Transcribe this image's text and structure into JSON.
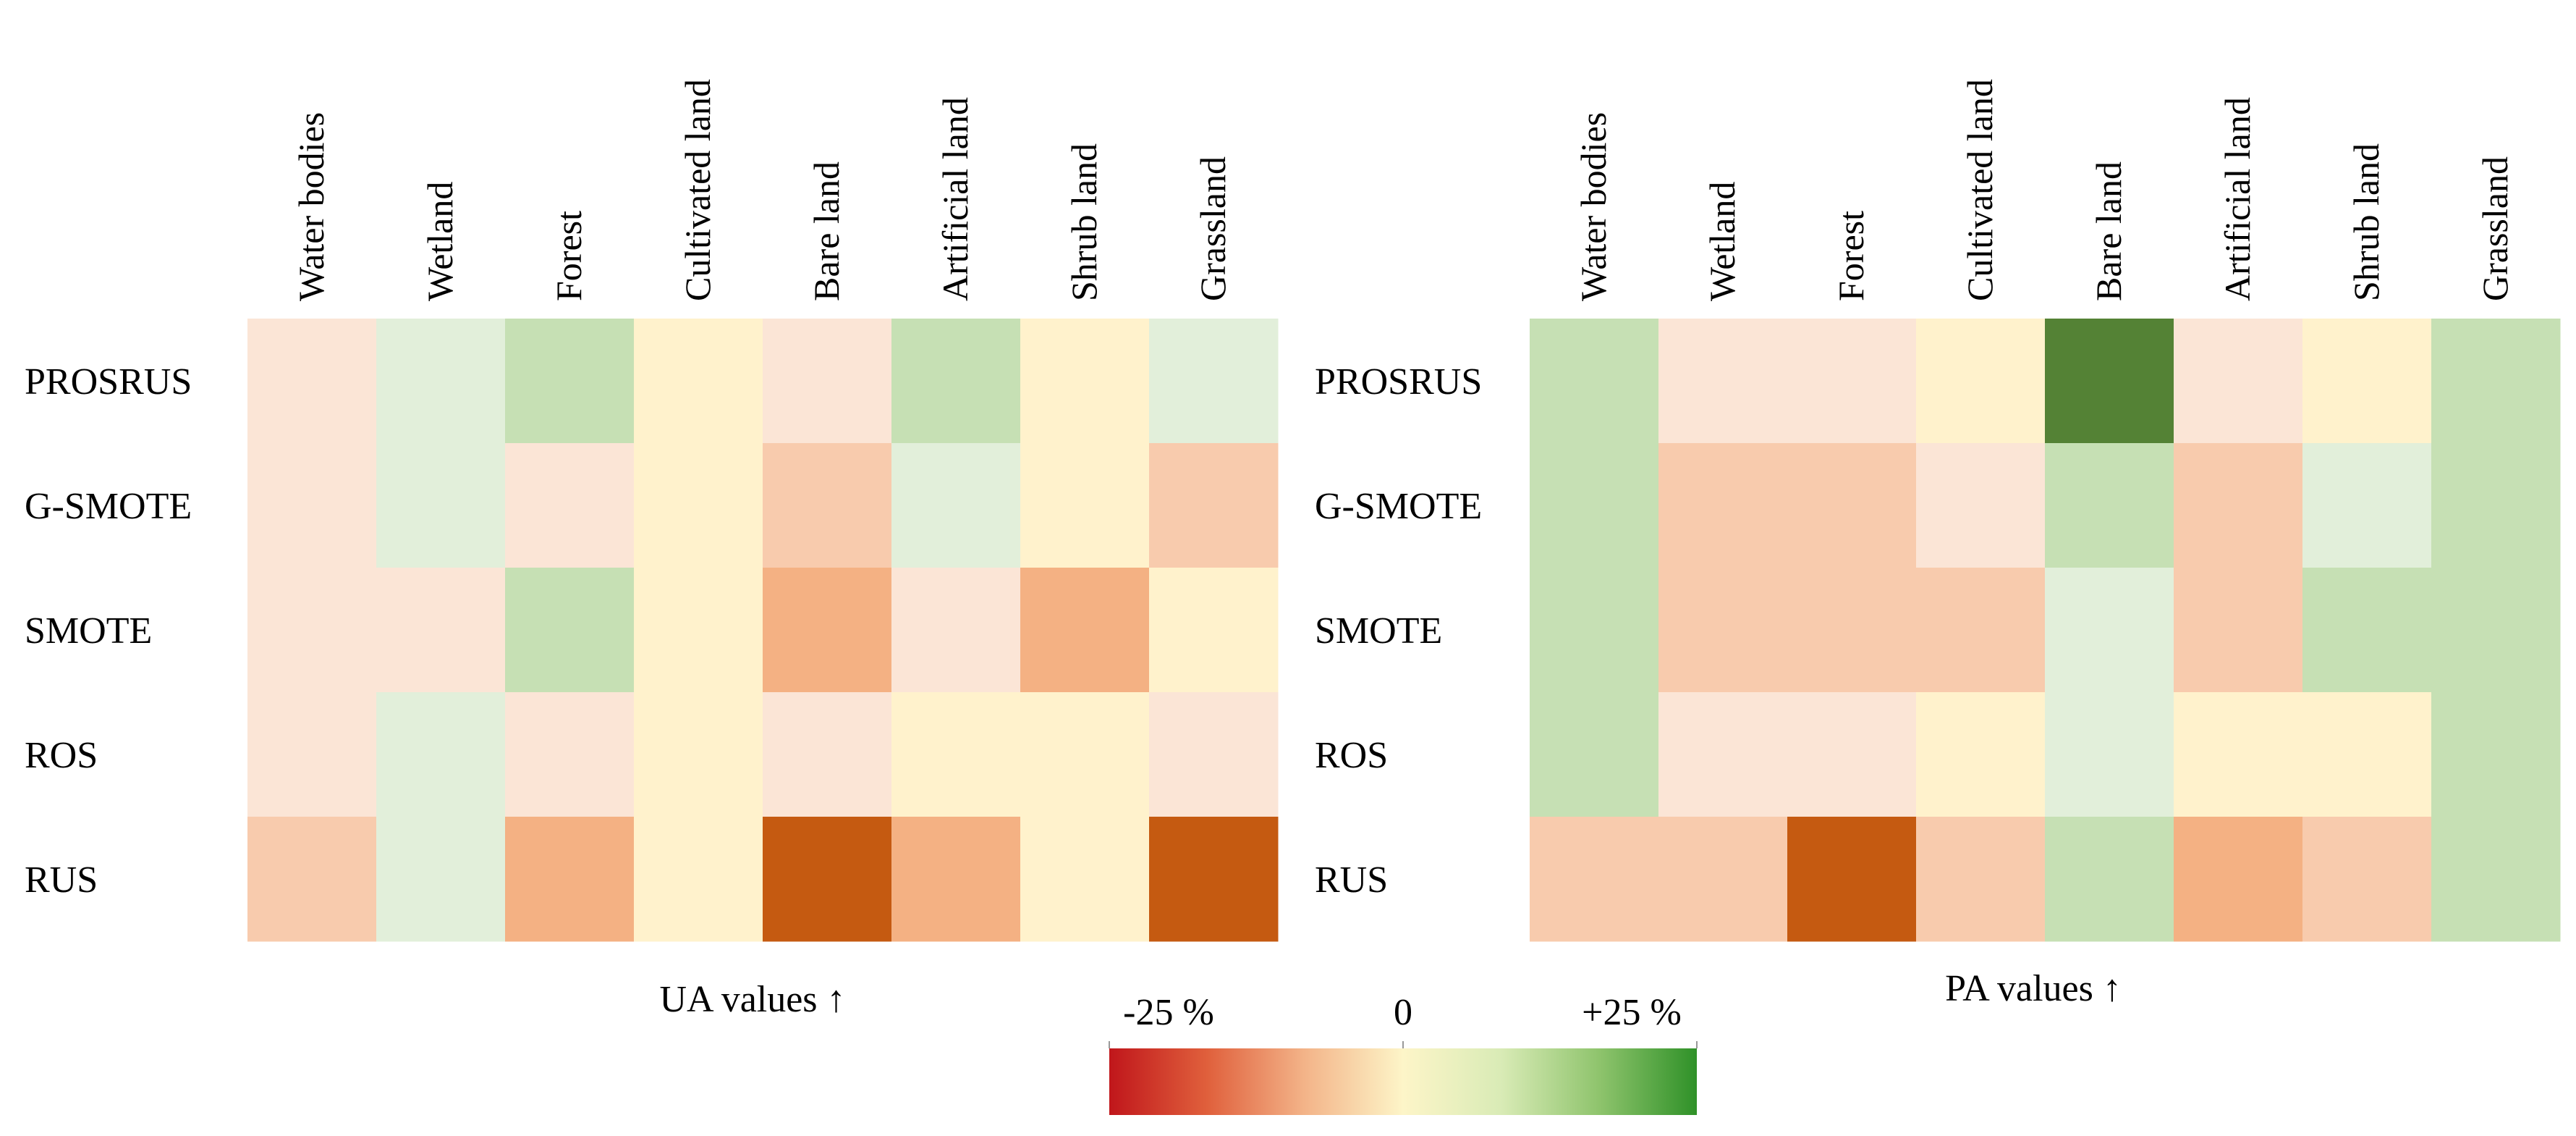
{
  "chart_data": [
    {
      "type": "heatmap",
      "caption": "UA values",
      "caption_arrow": "↑",
      "columns": [
        "Water bodies",
        "Wetland",
        "Forest",
        "Cultivated land",
        "Bare land",
        "Artificial land",
        "Shrub land",
        "Grassland"
      ],
      "rows": [
        "PROSRUS",
        "G-SMOTE",
        "SMOTE",
        "ROS",
        "RUS"
      ],
      "values": [
        [
          -3,
          2,
          7,
          -1,
          -3,
          7,
          -1,
          2
        ],
        [
          -3,
          2,
          -3,
          -1,
          -7,
          2,
          -1,
          -7
        ],
        [
          -3,
          -3,
          7,
          -1,
          -10,
          -3,
          -10,
          -1
        ],
        [
          -3,
          2,
          -3,
          -1,
          -3,
          -1,
          -1,
          -3
        ],
        [
          -7,
          2,
          -10,
          -1,
          -22,
          -10,
          -1,
          -22
        ]
      ]
    },
    {
      "type": "heatmap",
      "caption": "PA values",
      "caption_arrow": "↑",
      "columns": [
        "Water bodies",
        "Wetland",
        "Forest",
        "Cultivated land",
        "Bare land",
        "Artificial land",
        "Shrub land",
        "Grassland"
      ],
      "rows": [
        "PROSRUS",
        "G-SMOTE",
        "SMOTE",
        "ROS",
        "RUS"
      ],
      "values": [
        [
          7,
          -3,
          -3,
          -1,
          22,
          -3,
          -1,
          7
        ],
        [
          7,
          -7,
          -7,
          -3,
          7,
          -7,
          2,
          7
        ],
        [
          7,
          -7,
          -7,
          -7,
          2,
          -7,
          7,
          7
        ],
        [
          7,
          -3,
          -3,
          -1,
          2,
          -1,
          -1,
          7
        ],
        [
          -7,
          -7,
          -22,
          -7,
          7,
          -10,
          -7,
          7
        ]
      ]
    }
  ],
  "colorbar": {
    "min_label": "-25 %",
    "mid_label": "0",
    "max_label": "+25 %",
    "range": [
      -25,
      25
    ],
    "stops": [
      "#c0161b",
      "#e0603c",
      "#f3b489",
      "#fdf5c8",
      "#d9ebb6",
      "#8fc46d",
      "#2f9128"
    ]
  },
  "palette": {
    "-22": "#c55a11",
    "-10": "#f4b183",
    "-7": "#f8cbad",
    "-3": "#fbe5d6",
    "-1": "#fff2cc",
    "2": "#e2efda",
    "7": "#c6e0b4",
    "22": "#548235"
  }
}
